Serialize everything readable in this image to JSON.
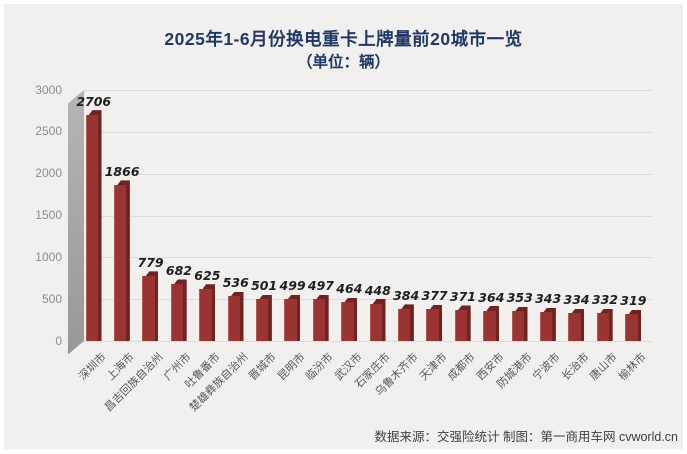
{
  "title": {
    "line1": "2025年1-6月份换电重卡上牌量前20城市一览",
    "line2": "（单位：辆）"
  },
  "footer": {
    "text": "数据来源：交强险统计  制图：第一商用车网 cvworld.cn"
  },
  "colors": {
    "title_navy": "#1f3864",
    "bar_front": "#993432",
    "bar_back": "#6e2423",
    "wall_gray": "#a5a5a5",
    "gridline": "#dcdcdc",
    "panel_bg": "#f1f0ee",
    "value_label": "#1f1f1f",
    "axis_label": "#8c8c8c"
  },
  "chart_data": {
    "type": "bar",
    "title": "2025年1-6月份换电重卡上牌量前20城市一览",
    "subtitle": "（单位：辆）",
    "xlabel": "",
    "ylabel": "",
    "ylim": [
      0,
      3000
    ],
    "yticks": [
      0,
      500,
      1000,
      1500,
      2000,
      2500,
      3000
    ],
    "grid": true,
    "legend": false,
    "style": "3d-column",
    "categories": [
      "深圳市",
      "上海市",
      "昌吉回族自治州",
      "广州市",
      "吐鲁番市",
      "楚雄彝族自治州",
      "晋城市",
      "昆明市",
      "临汾市",
      "武汉市",
      "石家庄市",
      "乌鲁木齐市",
      "天津市",
      "成都市",
      "西安市",
      "防城港市",
      "宁波市",
      "长治市",
      "唐山市",
      "榆林市"
    ],
    "values": [
      2706,
      1866,
      779,
      682,
      625,
      536,
      501,
      499,
      497,
      464,
      448,
      384,
      377,
      371,
      364,
      353,
      343,
      334,
      332,
      319
    ]
  }
}
